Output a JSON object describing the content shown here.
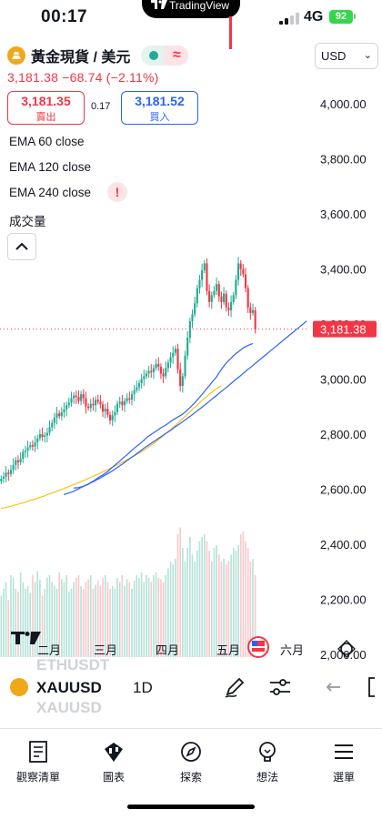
{
  "status_bar": {
    "time": "00:17",
    "island_text": "TradingView",
    "network": "4G",
    "battery": "92"
  },
  "symbol_header": {
    "name": "黃金現貨 / 美元",
    "wave_glyph": "≈",
    "last": "3,181.38",
    "change": "−68.74",
    "change_pct": "(−2.11%)"
  },
  "trade": {
    "sell_price": "3,181.35",
    "sell_label": "賣出",
    "spread": "0.17",
    "buy_price": "3,181.52",
    "buy_label": "買入"
  },
  "indicators": [
    "EMA 60 close",
    "EMA 120 close",
    "EMA 240 close",
    "成交量"
  ],
  "warning_glyph": "!",
  "currency": {
    "value": "USD"
  },
  "chart_data": {
    "type": "candlestick",
    "timeframe": "1D",
    "y_ticks": [
      "4,000.00",
      "3,800.00",
      "3,600.00",
      "3,400.00",
      "3,200.00",
      "3,000.00",
      "2,800.00",
      "2,600.00",
      "2,400.00",
      "2,200.00",
      "2,000.00"
    ],
    "x_ticks": [
      "二月",
      "三月",
      "四月",
      "五月",
      "六月"
    ],
    "last_price_label": "3,181.38",
    "last_price": 3181.38,
    "ylim": [
      1990,
      4060
    ],
    "closes": [
      2638,
      2645,
      2660,
      2655,
      2670,
      2688,
      2705,
      2698,
      2710,
      2735,
      2740,
      2752,
      2760,
      2755,
      2770,
      2785,
      2800,
      2790,
      2795,
      2805,
      2825,
      2840,
      2860,
      2875,
      2865,
      2880,
      2890,
      2905,
      2915,
      2930,
      2940,
      2935,
      2920,
      2945,
      2930,
      2900,
      2895,
      2910,
      2905,
      2925,
      2918,
      2908,
      2882,
      2892,
      2870,
      2850,
      2868,
      2880,
      2910,
      2918,
      2905,
      2920,
      2930,
      2925,
      2945,
      2960,
      2970,
      2985,
      3000,
      3010,
      3020,
      3030,
      3025,
      3040,
      3055,
      3045,
      3020,
      3010,
      3040,
      3060,
      3080,
      3095,
      3110,
      3035,
      2975,
      3010,
      3085,
      3150,
      3210,
      3235,
      3275,
      3330,
      3360,
      3395,
      3420,
      3320,
      3280,
      3305,
      3320,
      3345,
      3300,
      3280,
      3310,
      3260,
      3250,
      3280,
      3305,
      3360,
      3420,
      3400,
      3380,
      3330,
      3260,
      3240,
      3250,
      3180
    ],
    "ema60": [
      2604,
      2605,
      2606,
      2608,
      2611,
      2615,
      2619,
      2624,
      2629,
      2635,
      2641,
      2647,
      2652,
      2658,
      2664,
      2672,
      2680,
      2688,
      2695,
      2702,
      2710,
      2718,
      2725,
      2733,
      2741,
      2749,
      2756,
      2763,
      2770,
      2778,
      2786,
      2793,
      2799,
      2805,
      2811,
      2817,
      2823,
      2828,
      2833,
      2839,
      2846,
      2852,
      2857,
      2862,
      2867,
      2873,
      2880,
      2888,
      2896,
      2905,
      2914,
      2924,
      2934,
      2944,
      2955,
      2966,
      2976,
      2987,
      2997,
      3008,
      3022,
      3035,
      3047,
      3058,
      3067,
      3076,
      3085,
      3093,
      3099,
      3106,
      3113,
      3118,
      3122,
      3126,
      3129
    ],
    "ema120": [
      2580,
      2583,
      2586,
      2589,
      2592,
      2597,
      2601,
      2606,
      2610,
      2614,
      2618,
      2623,
      2627,
      2632,
      2637,
      2641,
      2647,
      2652,
      2657,
      2662,
      2668,
      2674,
      2680,
      2686,
      2692,
      2699,
      2705,
      2712,
      2718,
      2724,
      2731,
      2737,
      2744,
      2751,
      2757,
      2763,
      2769,
      2775,
      2781,
      2787,
      2793,
      2799,
      2805,
      2811,
      2817,
      2824,
      2830,
      2836,
      2842,
      2849,
      2855,
      2862,
      2868,
      2875,
      2882,
      2889,
      2896,
      2903,
      2910,
      2917,
      2925,
      2932,
      2939,
      2946,
      2954,
      2961,
      2968,
      2975,
      2983,
      2990,
      2998,
      3005,
      3012,
      3020,
      3027,
      3035,
      3042,
      3049,
      3057,
      3064,
      3071,
      3079,
      3086,
      3093,
      3101,
      3108,
      3115,
      3123,
      3130,
      3138,
      3145,
      3152,
      3160,
      3167,
      3174,
      3182,
      3189,
      3196,
      3204,
      3211
    ],
    "ema240": [
      2530,
      2532,
      2534,
      2536,
      2538,
      2541,
      2543,
      2545,
      2548,
      2550,
      2553,
      2556,
      2559,
      2562,
      2564,
      2567,
      2570,
      2573,
      2576,
      2580,
      2583,
      2586,
      2589,
      2592,
      2596,
      2599,
      2603,
      2606,
      2610,
      2613,
      2617,
      2620,
      2624,
      2628,
      2631,
      2635,
      2639,
      2643,
      2647,
      2651,
      2655,
      2659,
      2663,
      2667,
      2671,
      2676,
      2680,
      2684,
      2689,
      2693,
      2698,
      2702,
      2707,
      2712,
      2716,
      2721,
      2726,
      2731,
      2737,
      2742,
      2748,
      2754,
      2760,
      2766,
      2773,
      2780,
      2787,
      2794,
      2802,
      2809,
      2817,
      2824,
      2832,
      2840,
      2848,
      2856,
      2864,
      2873,
      2881,
      2890,
      2898,
      2906,
      2914,
      2922,
      2930,
      2938,
      2945,
      2952,
      2959,
      2965,
      2971,
      2976
    ],
    "volumes": [
      0.45,
      0.5,
      0.55,
      0.42,
      0.6,
      0.58,
      0.5,
      0.48,
      0.62,
      0.55,
      0.5,
      0.52,
      0.47,
      0.6,
      0.55,
      0.63,
      0.57,
      0.45,
      0.5,
      0.58,
      0.6,
      0.55,
      0.52,
      0.5,
      0.62,
      0.57,
      0.55,
      0.6,
      0.48,
      0.5,
      0.55,
      0.58,
      0.6,
      0.52,
      0.5,
      0.55,
      0.57,
      0.6,
      0.5,
      0.53,
      0.56,
      0.52,
      0.58,
      0.6,
      0.55,
      0.5,
      0.52,
      0.5,
      0.58,
      0.55,
      0.6,
      0.52,
      0.57,
      0.55,
      0.5,
      0.56,
      0.6,
      0.58,
      0.62,
      0.55,
      0.6,
      0.58,
      0.55,
      0.6,
      0.62,
      0.58,
      0.57,
      0.55,
      0.6,
      0.65,
      0.7,
      0.68,
      0.72,
      0.9,
      0.95,
      0.8,
      0.7,
      0.8,
      0.88,
      0.75,
      0.7,
      0.78,
      0.85,
      0.88,
      0.9,
      0.85,
      0.78,
      0.7,
      0.8,
      0.82,
      0.75,
      0.7,
      0.72,
      0.68,
      0.7,
      0.75,
      0.8,
      0.78,
      0.82,
      0.9,
      0.92,
      0.85,
      0.8,
      0.7,
      0.72,
      0.6
    ],
    "colors": {
      "up": "#22ab94",
      "down": "#f23645",
      "ema60": "#2962ff",
      "ema120": "#2962ff",
      "ema240": "#f5c518"
    }
  },
  "toolbar": {
    "symbol": "XAUUSD",
    "ghost_above": "ETHUSDT",
    "ghost_below": "XAUUSD",
    "timeframe": "1D",
    "icons": [
      "draw-icon",
      "indicators-icon",
      "undo-icon"
    ]
  },
  "nav": {
    "items": [
      {
        "label": "觀察清單",
        "icon": "watchlist-icon"
      },
      {
        "label": "圖表",
        "icon": "chart-icon"
      },
      {
        "label": "探索",
        "icon": "explore-icon"
      },
      {
        "label": "想法",
        "icon": "ideas-icon"
      },
      {
        "label": "選單",
        "icon": "menu-icon"
      }
    ]
  }
}
